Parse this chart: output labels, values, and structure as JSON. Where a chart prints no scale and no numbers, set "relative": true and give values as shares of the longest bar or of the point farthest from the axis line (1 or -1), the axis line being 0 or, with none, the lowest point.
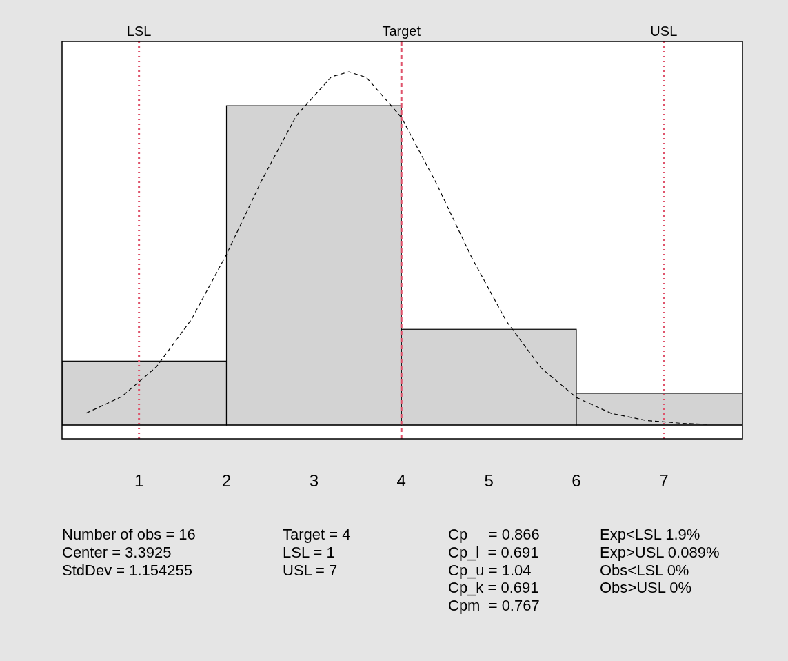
{
  "chart_data": {
    "type": "histogram",
    "relative": true,
    "xlim": [
      0.12,
      7.9
    ],
    "xticks": [
      1,
      2,
      3,
      4,
      5,
      6,
      7
    ],
    "grid": false,
    "series": [
      {
        "color": "#d3d3d3",
        "bins": [
          0.12,
          2,
          4,
          6,
          7.9
        ],
        "values": [
          0.181,
          0.904,
          0.271,
          0.09
        ]
      },
      {
        "type": "line",
        "color": "#000000",
        "line_style": "dashed",
        "marker": "none",
        "x": [
          0.4,
          0.8,
          1.2,
          1.6,
          2.0,
          2.4,
          2.8,
          3.2,
          3.4,
          3.6,
          4.0,
          4.4,
          4.8,
          5.2,
          5.6,
          6.0,
          6.4,
          6.8,
          7.2,
          7.5
        ],
        "values": [
          0.034,
          0.08,
          0.165,
          0.299,
          0.483,
          0.691,
          0.876,
          0.986,
          1,
          0.984,
          0.871,
          0.684,
          0.476,
          0.294,
          0.161,
          0.078,
          0.033,
          0.013,
          0.005,
          0.002
        ]
      }
    ],
    "ref_lines": [
      {
        "axis": "x",
        "value": 1,
        "label": "LSL",
        "color": "#df536b",
        "line_style": "dotted"
      },
      {
        "axis": "x",
        "value": 4,
        "label": "Target",
        "color": "#df536b",
        "line_style": "dashed"
      },
      {
        "axis": "x",
        "value": 7,
        "label": "USL",
        "color": "#df536b",
        "line_style": "dotted"
      }
    ],
    "annotations": [
      "Number of obs = 16\nCenter = 3.3925\nStdDev = 1.154255",
      "Target = 4\nLSL = 1\nUSL = 7",
      "Cp     = 0.866\nCp_l  = 0.691\nCp_u = 1.04\nCp_k = 0.691\nCpm  = 0.767",
      "Exp<LSL 1.9%\nExp>USL 0.089%\nObs<LSL 0%\nObs>USL 0%"
    ]
  }
}
